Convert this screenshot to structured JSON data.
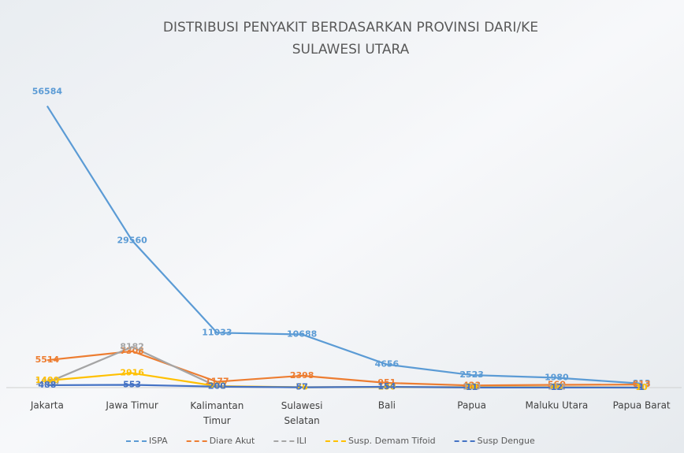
{
  "chart_data": {
    "type": "line",
    "title": [
      "DISTRIBUSI PENYAKIT BERDASARKAN PROVINSI DARI/KE",
      "SULAWESI UTARA"
    ],
    "categories": [
      "Jakarta",
      "Jawa Timur",
      "Kalimantan Timur",
      "Sulawesi Selatan",
      "Bali",
      "Papua",
      "Maluku Utara",
      "Papua Barat"
    ],
    "ylim": [
      0,
      60000
    ],
    "series": [
      {
        "name": "ISPA",
        "color": "#5b9bd5",
        "values": [
          56584,
          29560,
          11033,
          10688,
          4656,
          2523,
          1980,
          813
        ]
      },
      {
        "name": "Diare Akut",
        "color": "#ed7d31",
        "values": [
          5514,
          7308,
          1177,
          2398,
          951,
          423,
          560,
          613
        ]
      },
      {
        "name": "ILI",
        "color": "#a5a5a5",
        "values": [
          1000,
          8182,
          242,
          57,
          154,
          100,
          112,
          10
        ]
      },
      {
        "name": "Susp. Demam Tifoid",
        "color": "#ffc000",
        "values": [
          1400,
          2916,
          300,
          78,
          100,
          50,
          40,
          10
        ]
      },
      {
        "name": "Susp Dengue",
        "color": "#4472c4",
        "values": [
          488,
          553,
          200,
          57,
          154,
          11,
          12,
          1
        ]
      }
    ]
  }
}
